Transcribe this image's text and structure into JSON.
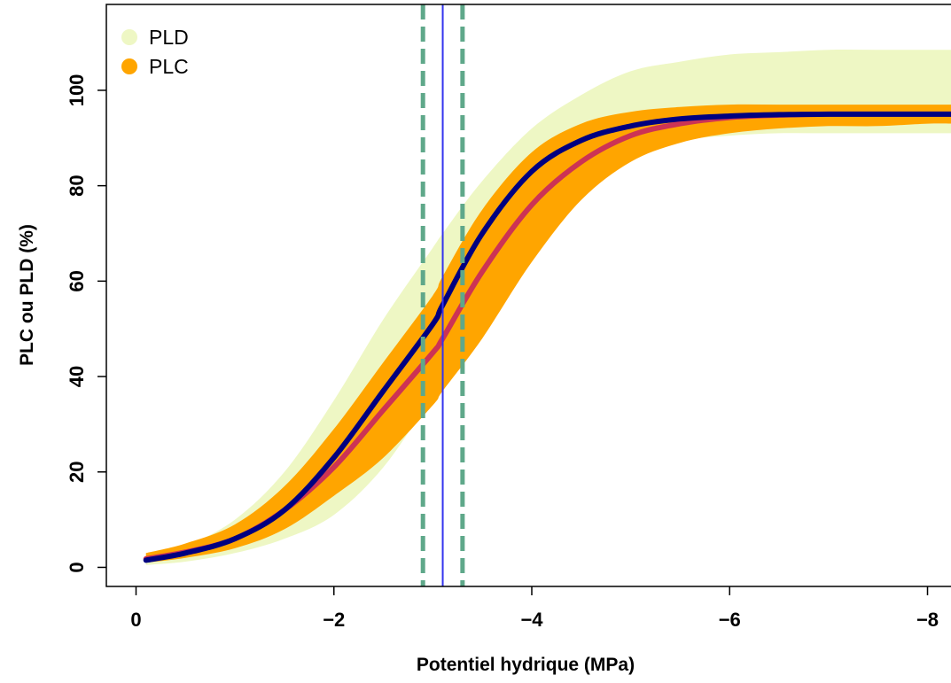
{
  "chart_data": {
    "type": "line",
    "title": "",
    "xlabel": "Potentiel hydrique (MPa)",
    "ylabel": "PLC ou PLD (%)",
    "xlim": [
      0.3,
      -8.3
    ],
    "ylim": [
      -4,
      118
    ],
    "x_ticks": [
      0,
      -2,
      -4,
      -6,
      -8
    ],
    "x_tick_labels": [
      "0",
      "−2",
      "−4",
      "−6",
      "−8"
    ],
    "y_ticks": [
      0,
      20,
      40,
      60,
      80,
      100
    ],
    "y_tick_labels": [
      "0",
      "20",
      "40",
      "60",
      "80",
      "100"
    ],
    "grid": false,
    "legend": {
      "position": "top-left",
      "entries": [
        {
          "label": "PLD",
          "color": "#eef7c4"
        },
        {
          "label": "PLC",
          "color": "#ffa500"
        }
      ]
    },
    "x": [
      -0.1,
      -0.5,
      -1.0,
      -1.5,
      -2.0,
      -2.5,
      -3.0,
      -3.1,
      -3.5,
      -4.0,
      -4.5,
      -5.0,
      -5.5,
      -6.0,
      -6.5,
      -7.0,
      -7.5,
      -8.0,
      -8.3
    ],
    "series": [
      {
        "name": "PLD",
        "kind": "band",
        "color": "#eef7c4",
        "lower": [
          0.5,
          1.2,
          3,
          6,
          11,
          21,
          36,
          39,
          53,
          70,
          81,
          87,
          89.5,
          90.5,
          91,
          91,
          91,
          91,
          91
        ],
        "upper": [
          2.5,
          4.5,
          10,
          20,
          35,
          52,
          67,
          70,
          81,
          92,
          99,
          104,
          106,
          107.5,
          108,
          108.5,
          108.5,
          108.5,
          108.5
        ]
      },
      {
        "name": "PLC",
        "kind": "band",
        "color": "#ffa500",
        "lower": [
          1,
          2,
          4,
          8,
          15,
          23,
          34,
          37,
          48,
          64,
          77,
          85,
          89,
          91,
          92,
          92.5,
          92.5,
          93,
          93
        ],
        "upper": [
          3,
          5,
          9,
          17,
          29,
          43,
          57,
          61,
          75,
          87,
          93,
          95.5,
          96.5,
          97,
          97,
          97,
          97,
          97,
          97
        ]
      },
      {
        "kind": "line",
        "color": "#cc3355",
        "values": [
          1.8,
          3.2,
          6,
          12,
          21,
          33,
          45,
          48,
          62,
          76,
          85,
          90.5,
          93,
          94.3,
          94.8,
          95,
          95,
          95,
          95
        ]
      },
      {
        "kind": "line",
        "color": "#000080",
        "values": [
          1.5,
          3,
          6,
          12,
          23,
          37,
          51,
          55,
          70,
          83,
          89.5,
          92.5,
          94,
          94.6,
          94.9,
          95,
          95,
          95,
          95
        ]
      }
    ],
    "vlines": [
      {
        "x": -3.1,
        "style": "solid",
        "color": "#3333ee"
      },
      {
        "x": -2.9,
        "style": "dashed",
        "color": "#5fa88a"
      },
      {
        "x": -3.3,
        "style": "dashed",
        "color": "#5fa88a"
      }
    ]
  }
}
